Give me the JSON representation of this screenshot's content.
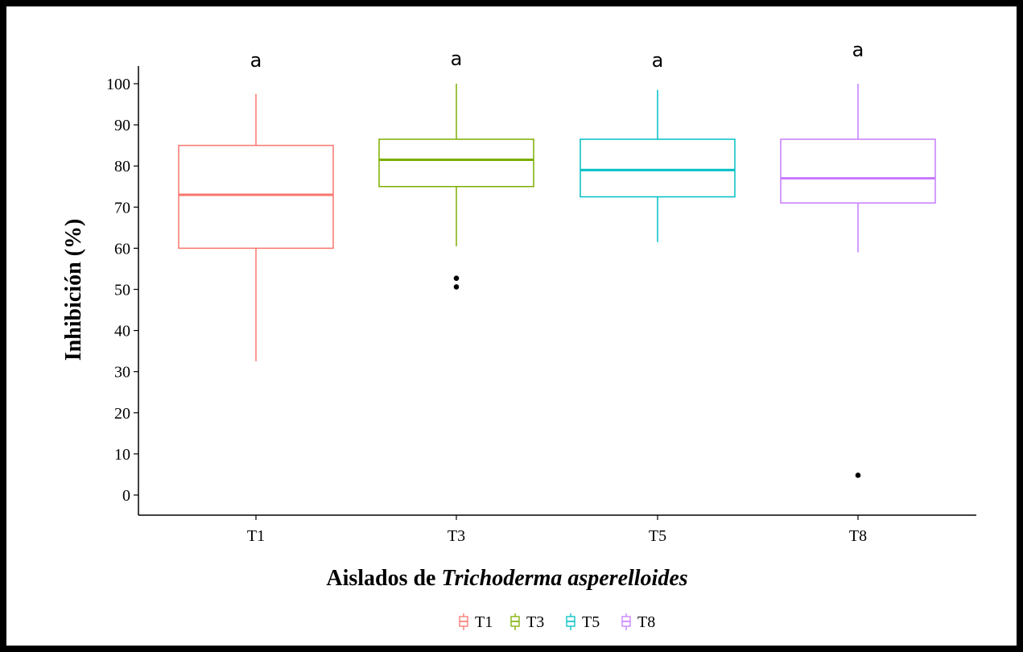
{
  "chart_data": {
    "type": "box",
    "xlabel_prefix": "Aislados de ",
    "xlabel_italic": "Trichoderma asperelloides",
    "ylabel": "Inhibición (%)",
    "ylim": [
      -5,
      105
    ],
    "yticks": [
      0,
      10,
      20,
      30,
      40,
      50,
      60,
      70,
      80,
      90,
      100
    ],
    "grid": false,
    "legend_position": "bottom",
    "categories": [
      "T1",
      "T3",
      "T5",
      "T8"
    ],
    "series": [
      {
        "name": "T1",
        "color": "#F8766D",
        "whisker_low": 32.5,
        "q1": 60,
        "median": 73,
        "q3": 85,
        "whisker_high": 97.5,
        "outliers": [],
        "sig_letter": "a"
      },
      {
        "name": "T3",
        "color": "#7CAE00",
        "whisker_low": 60.5,
        "q1": 75,
        "median": 81.5,
        "q3": 86.5,
        "whisker_high": 100,
        "outliers": [
          52.7,
          50.6
        ],
        "sig_letter": "a"
      },
      {
        "name": "T5",
        "color": "#00BFC4",
        "whisker_low": 61.5,
        "q1": 72.5,
        "median": 79,
        "q3": 86.5,
        "whisker_high": 98.5,
        "outliers": [],
        "sig_letter": "a"
      },
      {
        "name": "T8",
        "color": "#C77CFF",
        "whisker_low": 59,
        "q1": 71,
        "median": 77,
        "q3": 86.5,
        "whisker_high": 100,
        "outliers": [
          4.8
        ],
        "sig_letter": "a"
      }
    ]
  }
}
